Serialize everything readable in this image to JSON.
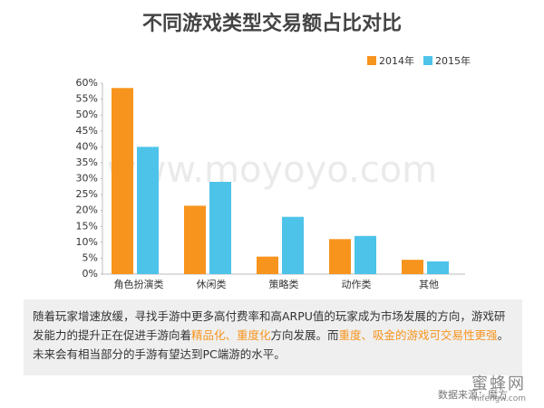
{
  "chart_data": {
    "type": "bar",
    "title": "不同游戏类型交易额占比对比",
    "categories": [
      "角色扮演类",
      "休闲类",
      "策略类",
      "动作类",
      "其他"
    ],
    "series": [
      {
        "name": "2014年",
        "color": "#f7941d",
        "values": [
          58.5,
          21.5,
          5.5,
          11,
          4.5
        ]
      },
      {
        "name": "2015年",
        "color": "#4dc3ea",
        "values": [
          40,
          29,
          18,
          12,
          4
        ]
      }
    ],
    "ylim": [
      0,
      60
    ],
    "yticks": [
      {
        "value": 0,
        "label": "0%"
      },
      {
        "value": 5,
        "label": "5%"
      },
      {
        "value": 10,
        "label": "10%"
      },
      {
        "value": 15,
        "label": "15%"
      },
      {
        "value": 20,
        "label": "20%"
      },
      {
        "value": 25,
        "label": "25%"
      },
      {
        "value": 30,
        "label": "30%"
      },
      {
        "value": 35,
        "label": "35%"
      },
      {
        "value": 40,
        "label": "40%"
      },
      {
        "value": 45,
        "label": "45%"
      },
      {
        "value": 50,
        "label": "50%"
      },
      {
        "value": 55,
        "label": "55%"
      },
      {
        "value": 60,
        "label": "60%"
      }
    ],
    "legend": "top-right",
    "watermark": "www.moyoyo.com"
  },
  "description": [
    {
      "text": "随着玩家增速放缓，寻找手游中更多高付费率和高ARPU值的玩家成为市场发展的方向，游戏研发能力的提升正在促进手游向着",
      "highlight": false
    },
    {
      "text": "精品化、重度化",
      "highlight": true
    },
    {
      "text": "方向发展。而",
      "highlight": false
    },
    {
      "text": "重度、吸金的游戏可交易性更强",
      "highlight": true
    },
    {
      "text": "。未来会有相当部分的手游有望达到PC端游的水平。",
      "highlight": false
    }
  ],
  "source": "数据来源：魔方",
  "logo": {
    "name": "蜜蜂网",
    "url": "mifengw.com"
  }
}
